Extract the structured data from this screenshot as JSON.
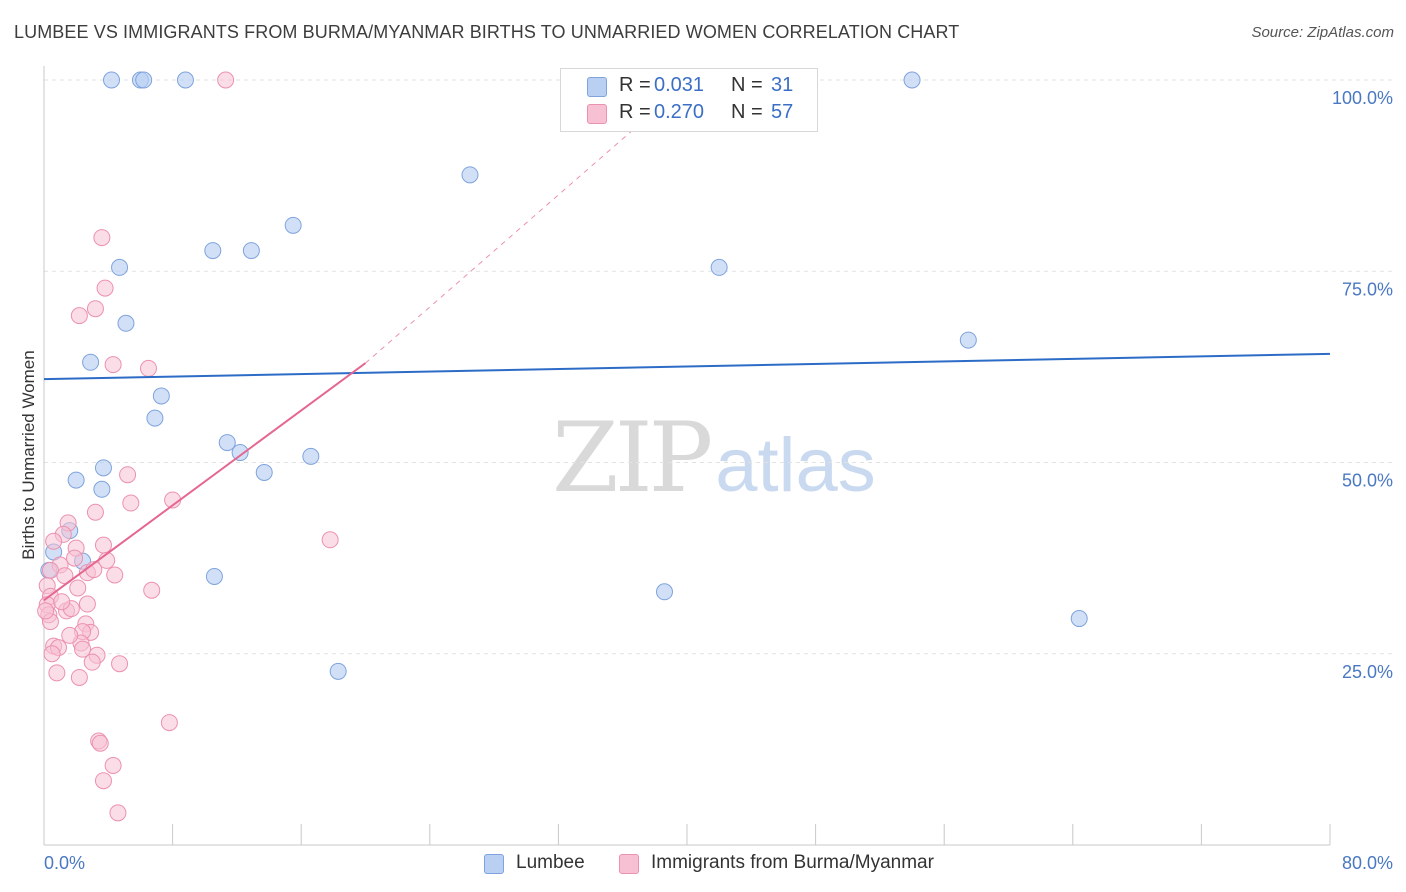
{
  "header": {
    "title": "LUMBEE VS IMMIGRANTS FROM BURMA/MYANMAR BIRTHS TO UNMARRIED WOMEN CORRELATION CHART",
    "source": "Source: ZipAtlas.com"
  },
  "watermark": {
    "zip": "ZIP",
    "atlas": "atlas"
  },
  "legend": {
    "rows": [
      {
        "r_label": "R =",
        "r_value": "0.031",
        "n_label": "N =",
        "n_value": "31"
      },
      {
        "r_label": "R =",
        "r_value": "0.270",
        "n_label": "N =",
        "n_value": "57"
      }
    ]
  },
  "bottom_legend": {
    "series1": "Lumbee",
    "series2": "Immigrants from Burma/Myanmar"
  },
  "colors": {
    "lumbee_fill": "#b9d0f3",
    "lumbee_stroke": "#7fa3dc",
    "lumbee_line": "#2d6cc6",
    "burma_fill": "#f8c1d3",
    "burma_stroke": "#ec91b0",
    "burma_line": "#e5678f",
    "grid": "#e2e2e2",
    "tick_text": "#4a78c2"
  },
  "chart_data": {
    "type": "scatter",
    "title": "LUMBEE VS IMMIGRANTS FROM BURMA/MYANMAR BIRTHS TO UNMARRIED WOMEN CORRELATION CHART",
    "xlabel": "",
    "ylabel": "Births to Unmarried Women",
    "xlim": [
      0,
      80
    ],
    "ylim": [
      0,
      100
    ],
    "x_tick_labels": [
      {
        "value": 0,
        "label": "0.0%"
      },
      {
        "value": 80,
        "label": "80.0%"
      }
    ],
    "y_tick_labels": [
      {
        "value": 100,
        "label": "100.0%"
      },
      {
        "value": 75,
        "label": "75.0%"
      },
      {
        "value": 50,
        "label": "50.0%"
      },
      {
        "value": 25,
        "label": "25.0%"
      }
    ],
    "grid": true,
    "series": [
      {
        "name": "Lumbee",
        "r": 0.031,
        "n": 31,
        "points": [
          [
            4.2,
            100
          ],
          [
            6.0,
            100
          ],
          [
            6.2,
            100
          ],
          [
            8.8,
            100
          ],
          [
            54.0,
            100
          ],
          [
            26.5,
            87.6
          ],
          [
            15.5,
            81
          ],
          [
            10.5,
            77.7
          ],
          [
            12.9,
            77.7
          ],
          [
            4.7,
            75.5
          ],
          [
            42.0,
            75.5
          ],
          [
            5.1,
            68.2
          ],
          [
            57.5,
            66
          ],
          [
            2.9,
            63.1
          ],
          [
            7.3,
            58.7
          ],
          [
            6.9,
            55.8
          ],
          [
            11.4,
            52.6
          ],
          [
            12.2,
            51.3
          ],
          [
            16.6,
            50.8
          ],
          [
            3.7,
            49.3
          ],
          [
            13.7,
            48.7
          ],
          [
            2.0,
            47.7
          ],
          [
            3.6,
            46.5
          ],
          [
            1.6,
            41.1
          ],
          [
            0.6,
            38.3
          ],
          [
            2.4,
            37.1
          ],
          [
            0.3,
            35.9
          ],
          [
            10.6,
            35.1
          ],
          [
            38.6,
            33.1
          ],
          [
            64.4,
            29.6
          ],
          [
            18.3,
            22.7
          ]
        ],
        "trend": {
          "x_start": 0,
          "y_start": 60.9,
          "x_end": 80,
          "y_end": 64.2
        }
      },
      {
        "name": "Immigrants from Burma/Myanmar",
        "r": 0.27,
        "n": 57,
        "points": [
          [
            11.3,
            100
          ],
          [
            3.6,
            79.4
          ],
          [
            3.8,
            72.8
          ],
          [
            3.2,
            70.1
          ],
          [
            2.2,
            69.2
          ],
          [
            4.3,
            62.8
          ],
          [
            6.5,
            62.3
          ],
          [
            5.2,
            48.4
          ],
          [
            5.4,
            44.7
          ],
          [
            8.0,
            45.1
          ],
          [
            3.2,
            43.5
          ],
          [
            1.5,
            42.1
          ],
          [
            1.2,
            40.6
          ],
          [
            0.6,
            39.7
          ],
          [
            17.8,
            39.9
          ],
          [
            3.7,
            39.2
          ],
          [
            2.0,
            38.8
          ],
          [
            3.9,
            37.2
          ],
          [
            1.0,
            36.6
          ],
          [
            0.4,
            35.9
          ],
          [
            1.3,
            35.2
          ],
          [
            2.7,
            35.6
          ],
          [
            4.4,
            35.3
          ],
          [
            0.2,
            33.9
          ],
          [
            2.1,
            33.6
          ],
          [
            6.7,
            33.3
          ],
          [
            0.4,
            32.5
          ],
          [
            0.2,
            31.4
          ],
          [
            2.7,
            31.5
          ],
          [
            1.4,
            30.6
          ],
          [
            1.7,
            30.9
          ],
          [
            0.3,
            30.1
          ],
          [
            0.4,
            29.2
          ],
          [
            2.6,
            28.9
          ],
          [
            2.9,
            27.8
          ],
          [
            2.4,
            27.9
          ],
          [
            2.3,
            26.4
          ],
          [
            0.6,
            26.0
          ],
          [
            0.9,
            25.8
          ],
          [
            2.4,
            25.6
          ],
          [
            0.5,
            25.0
          ],
          [
            3.3,
            24.8
          ],
          [
            3.0,
            23.9
          ],
          [
            4.7,
            23.7
          ],
          [
            0.8,
            22.5
          ],
          [
            2.2,
            21.9
          ],
          [
            7.8,
            16.0
          ],
          [
            3.4,
            13.6
          ],
          [
            3.5,
            13.3
          ],
          [
            4.3,
            10.4
          ],
          [
            3.7,
            8.4
          ],
          [
            4.6,
            4.2
          ],
          [
            0.1,
            30.6
          ],
          [
            1.1,
            31.8
          ],
          [
            1.9,
            37.5
          ],
          [
            3.1,
            36.0
          ],
          [
            1.6,
            27.4
          ]
        ],
        "trend": {
          "x_start": 0,
          "y_start": 32.0,
          "x_end": 20.0,
          "y_end": 63.0
        },
        "trend_extension": {
          "x_start": 20.0,
          "y_start": 63.0,
          "x_end": 40.2,
          "y_end": 100
        }
      }
    ]
  }
}
